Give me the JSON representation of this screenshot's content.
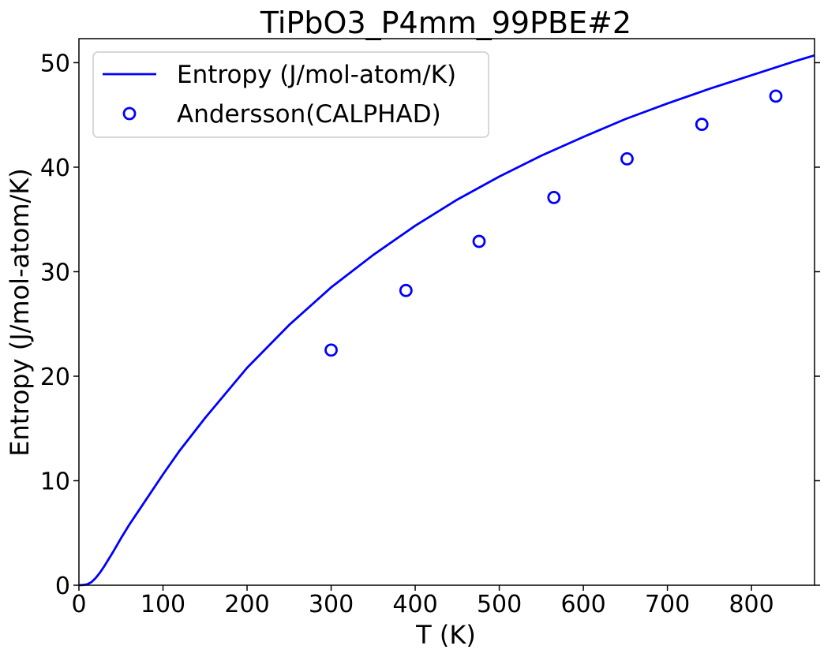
{
  "chart_data": {
    "type": "line",
    "title": "TiPbO3_P4mm_99PBE#2",
    "xlabel": "T (K)",
    "ylabel": "Entropy (J/mol-atom/K)",
    "xlim": [
      0,
      875
    ],
    "ylim": [
      0,
      52.3
    ],
    "xticks": [
      0,
      100,
      200,
      300,
      400,
      500,
      600,
      700,
      800
    ],
    "yticks": [
      0,
      10,
      20,
      30,
      40,
      50
    ],
    "grid": false,
    "legend_position": "top-left",
    "series": [
      {
        "name": "Entropy (J/mol-atom/K)",
        "kind": "line",
        "color": "#0000ff",
        "x": [
          0,
          5,
          10,
          15,
          20,
          25,
          30,
          40,
          50,
          60,
          70,
          80,
          100,
          120,
          150,
          200,
          250,
          300,
          350,
          400,
          450,
          500,
          550,
          600,
          650,
          700,
          750,
          800,
          850,
          875
        ],
        "y": [
          0,
          0.02,
          0.1,
          0.3,
          0.7,
          1.2,
          1.8,
          3.1,
          4.5,
          5.8,
          7.0,
          8.2,
          10.6,
          12.9,
          16.0,
          20.8,
          24.9,
          28.5,
          31.6,
          34.4,
          36.9,
          39.1,
          41.1,
          42.9,
          44.6,
          46.1,
          47.5,
          48.8,
          50.1,
          50.7
        ]
      },
      {
        "name": "Andersson(CALPHAD)",
        "kind": "scatter",
        "color": "#0000ff",
        "marker": "open-circle",
        "x": [
          300,
          389,
          476,
          565,
          652,
          741,
          829
        ],
        "y": [
          22.5,
          28.2,
          32.9,
          37.1,
          40.8,
          44.1,
          46.8
        ]
      }
    ]
  }
}
